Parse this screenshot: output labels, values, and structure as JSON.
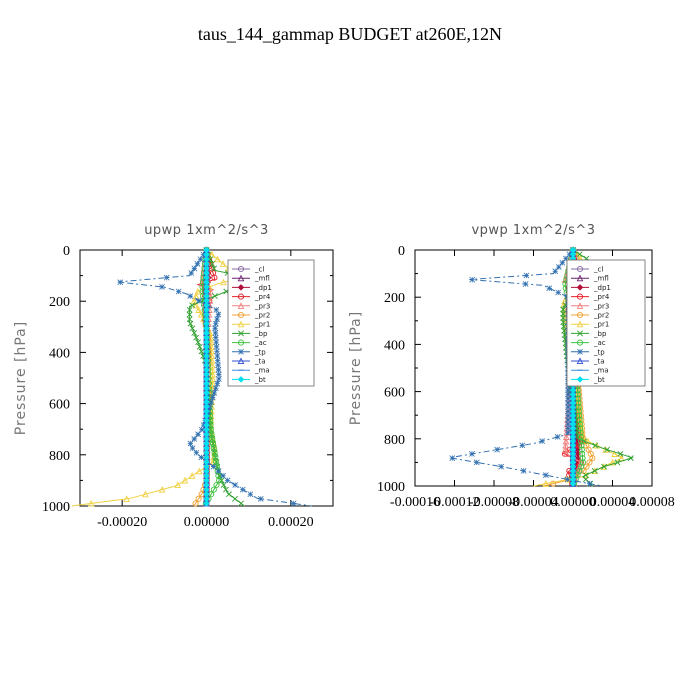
{
  "page_title": "taus_144_gammap  BUDGET at260E,12N",
  "legend_items": [
    "_cl",
    "_mfl",
    "_dp1",
    "_pr4",
    "_pr3",
    "_pr2",
    "_pr1",
    "_bp",
    "_ac",
    "_tp",
    "_ta",
    "_ma",
    "_bt"
  ],
  "chart_data": [
    {
      "type": "line",
      "title": "upwp    1xm^2/s^3",
      "ylabel": "Pressure [hPa]",
      "xlim": [
        -0.0003,
        0.0003
      ],
      "ylim": [
        1000,
        0
      ],
      "xticks": [
        -0.0002,
        0.0,
        0.0002
      ],
      "xtick_labels": [
        "-0.00020",
        "0.00000",
        "0.00020"
      ],
      "yticks": [
        0,
        200,
        400,
        600,
        800,
        1000
      ],
      "ytick_labels": [
        "0",
        "200",
        "400",
        "600",
        "800",
        "1000"
      ],
      "legend_position": "top-right",
      "series": [
        {
          "name": "_cl",
          "color": "#8a6aa8",
          "x": [
            0,
            0,
            0,
            0,
            0,
            0,
            0
          ],
          "y": [
            0,
            120,
            200,
            400,
            600,
            800,
            1000
          ]
        },
        {
          "name": "_mfl",
          "color": "#6a1f6a",
          "x": [
            0,
            0,
            0,
            0,
            0,
            0,
            0
          ],
          "y": [
            0,
            120,
            200,
            400,
            600,
            800,
            1000
          ]
        },
        {
          "name": "_dp1",
          "color": "#b0103a",
          "x": [
            0,
            5e-06,
            -5e-06,
            0,
            0,
            0
          ],
          "y": [
            0,
            120,
            150,
            300,
            700,
            1000
          ]
        },
        {
          "name": "_pr4",
          "color": "#e8202a",
          "x": [
            0,
            2e-05,
            -2e-05,
            1.5e-05,
            -1e-05,
            8e-06,
            -5e-06,
            5e-06,
            0
          ],
          "y": [
            0,
            115,
            135,
            155,
            170,
            190,
            260,
            350,
            1000
          ]
        },
        {
          "name": "_pr3",
          "color": "#f08080",
          "x": [
            0,
            -1e-05,
            1e-05,
            0,
            0
          ],
          "y": [
            0,
            130,
            150,
            400,
            1000
          ]
        },
        {
          "name": "_pr2",
          "color": "#f0a030",
          "x": [
            0,
            0,
            5e-06,
            0,
            0,
            -1e-05,
            -3e-05
          ],
          "y": [
            0,
            300,
            600,
            800,
            900,
            950,
            1000
          ]
        },
        {
          "name": "_pr1",
          "color": "#f0d040",
          "x": [
            0,
            8e-05,
            3e-05,
            -2e-05,
            -3e-05,
            -1e-05,
            1e-05,
            1.5e-05,
            1e-05,
            2e-05,
            1.5e-05,
            -7e-05,
            -0.00018,
            -0.00032
          ],
          "y": [
            0,
            110,
            130,
            160,
            200,
            260,
            330,
            500,
            700,
            780,
            830,
            920,
            970,
            1000
          ]
        },
        {
          "name": "_bp",
          "color": "#30a030",
          "x": [
            0,
            2e-05,
            0.00014,
            5e-05,
            -4e-05,
            -4e-05,
            -2e-05,
            0,
            1e-05,
            2e-05,
            3e-05,
            5e-05,
            9e-05
          ],
          "y": [
            0,
            80,
            120,
            160,
            220,
            280,
            360,
            450,
            700,
            800,
            880,
            950,
            1000
          ]
        },
        {
          "name": "_ac",
          "color": "#40c040",
          "x": [
            0,
            -1e-05,
            0,
            1e-05,
            2e-05,
            3e-05,
            -5e-06
          ],
          "y": [
            0,
            150,
            300,
            700,
            800,
            900,
            1000
          ]
        },
        {
          "name": "_tp",
          "color": "#3070b0",
          "x": [
            0,
            -4e-05,
            -0.00021,
            -0.0001,
            -5e-05,
            3e-05,
            2e-05,
            3e-05,
            -1e-05,
            -4e-05,
            -2e-05,
            2e-05,
            5e-05,
            9e-05,
            0.00012,
            0.00025
          ],
          "y": [
            0,
            100,
            125,
            145,
            170,
            240,
            300,
            500,
            700,
            760,
            800,
            850,
            900,
            940,
            970,
            1000
          ]
        },
        {
          "name": "_ta",
          "color": "#3050d0",
          "x": [
            0,
            0,
            0,
            0
          ],
          "y": [
            0,
            300,
            700,
            1000
          ]
        },
        {
          "name": "_ma",
          "color": "#4090e0",
          "x": [
            0,
            0,
            0,
            0
          ],
          "y": [
            0,
            300,
            700,
            1000
          ]
        },
        {
          "name": "_bt",
          "color": "#00e0f0",
          "x": [
            0,
            0,
            0
          ],
          "y": [
            0,
            500,
            1000
          ]
        }
      ]
    },
    {
      "type": "line",
      "title": "vpwp    1xm^2/s^3",
      "ylabel": "Pressure [hPa]",
      "xlim": [
        -0.00016,
        8e-05
      ],
      "ylim": [
        1000,
        0
      ],
      "xticks": [
        -0.00016,
        -0.00012,
        -8e-05,
        -4e-05,
        0.0,
        4e-05,
        8e-05
      ],
      "xtick_labels": [
        "-0.00016",
        "-0.00012",
        "-0.00008",
        "-0.00004",
        "0.00000",
        "0.00004",
        "0.00008"
      ],
      "yticks": [
        0,
        200,
        400,
        600,
        800,
        1000
      ],
      "ytick_labels": [
        "0",
        "200",
        "400",
        "600",
        "800",
        "1000"
      ],
      "legend_position": "top-right",
      "series": [
        {
          "name": "_cl",
          "color": "#8a6aa8",
          "x": [
            0,
            0,
            0,
            0,
            0,
            0
          ],
          "y": [
            0,
            120,
            300,
            600,
            850,
            1000
          ]
        },
        {
          "name": "_mfl",
          "color": "#6a1f6a",
          "x": [
            0,
            0,
            0,
            0,
            0,
            0
          ],
          "y": [
            0,
            120,
            300,
            600,
            850,
            1000
          ]
        },
        {
          "name": "_dp1",
          "color": "#b0103a",
          "x": [
            0,
            5e-06,
            -5e-06,
            0,
            5e-06,
            0
          ],
          "y": [
            0,
            120,
            150,
            400,
            880,
            1000
          ]
        },
        {
          "name": "_pr4",
          "color": "#e8202a",
          "x": [
            0,
            1e-05,
            -1e-05,
            8e-06,
            -5e-06,
            0,
            1e-05,
            -1e-05,
            8e-06,
            -5e-06,
            0
          ],
          "y": [
            0,
            110,
            135,
            160,
            200,
            600,
            820,
            860,
            900,
            940,
            1000
          ]
        },
        {
          "name": "_pr3",
          "color": "#f08080",
          "x": [
            0,
            -8e-06,
            8e-06,
            0,
            -8e-06,
            8e-06,
            0
          ],
          "y": [
            0,
            130,
            150,
            400,
            860,
            900,
            1000
          ]
        },
        {
          "name": "_pr2",
          "color": "#f0a030",
          "x": [
            0,
            0,
            1e-05,
            2e-05,
            1e-05,
            -1e-05,
            -3e-05
          ],
          "y": [
            0,
            300,
            800,
            880,
            940,
            980,
            1000
          ]
        },
        {
          "name": "_pr1",
          "color": "#f0d040",
          "x": [
            0,
            2e-05,
            4e-05,
            1e-05,
            -1e-05,
            -5e-06,
            1e-05,
            5e-05,
            3e-05,
            1e-05,
            -4e-05
          ],
          "y": [
            0,
            100,
            130,
            170,
            220,
            400,
            800,
            880,
            920,
            960,
            1000
          ]
        },
        {
          "name": "_bp",
          "color": "#30a030",
          "x": [
            0,
            3e-05,
            6.5e-05,
            2e-05,
            -1e-05,
            -1e-05,
            -5e-06,
            5e-06,
            3e-05,
            6e-05,
            3e-05,
            1e-05,
            2e-05
          ],
          "y": [
            0,
            80,
            130,
            170,
            240,
            300,
            500,
            800,
            840,
            880,
            920,
            960,
            1000
          ]
        },
        {
          "name": "_ac",
          "color": "#40c040",
          "x": [
            0,
            -8e-06,
            0,
            8e-06,
            1e-05,
            0
          ],
          "y": [
            0,
            150,
            300,
            800,
            900,
            1000
          ]
        },
        {
          "name": "_tp",
          "color": "#3070b0",
          "x": [
            0,
            -2e-05,
            -0.000105,
            -3e-05,
            -5e-06,
            -5e-06,
            -4e-05,
            -0.000125,
            -7e-05,
            -2e-05,
            1e-05,
            3e-05
          ],
          "y": [
            0,
            100,
            125,
            150,
            200,
            780,
            820,
            880,
            920,
            960,
            985,
            1000
          ]
        },
        {
          "name": "_ta",
          "color": "#3050d0",
          "x": [
            0,
            0,
            0,
            0
          ],
          "y": [
            0,
            300,
            800,
            1000
          ]
        },
        {
          "name": "_ma",
          "color": "#4090e0",
          "x": [
            0,
            0,
            0,
            0
          ],
          "y": [
            0,
            300,
            800,
            1000
          ]
        },
        {
          "name": "_bt",
          "color": "#00e0f0",
          "x": [
            0,
            0,
            0
          ],
          "y": [
            0,
            500,
            1000
          ]
        }
      ]
    }
  ]
}
